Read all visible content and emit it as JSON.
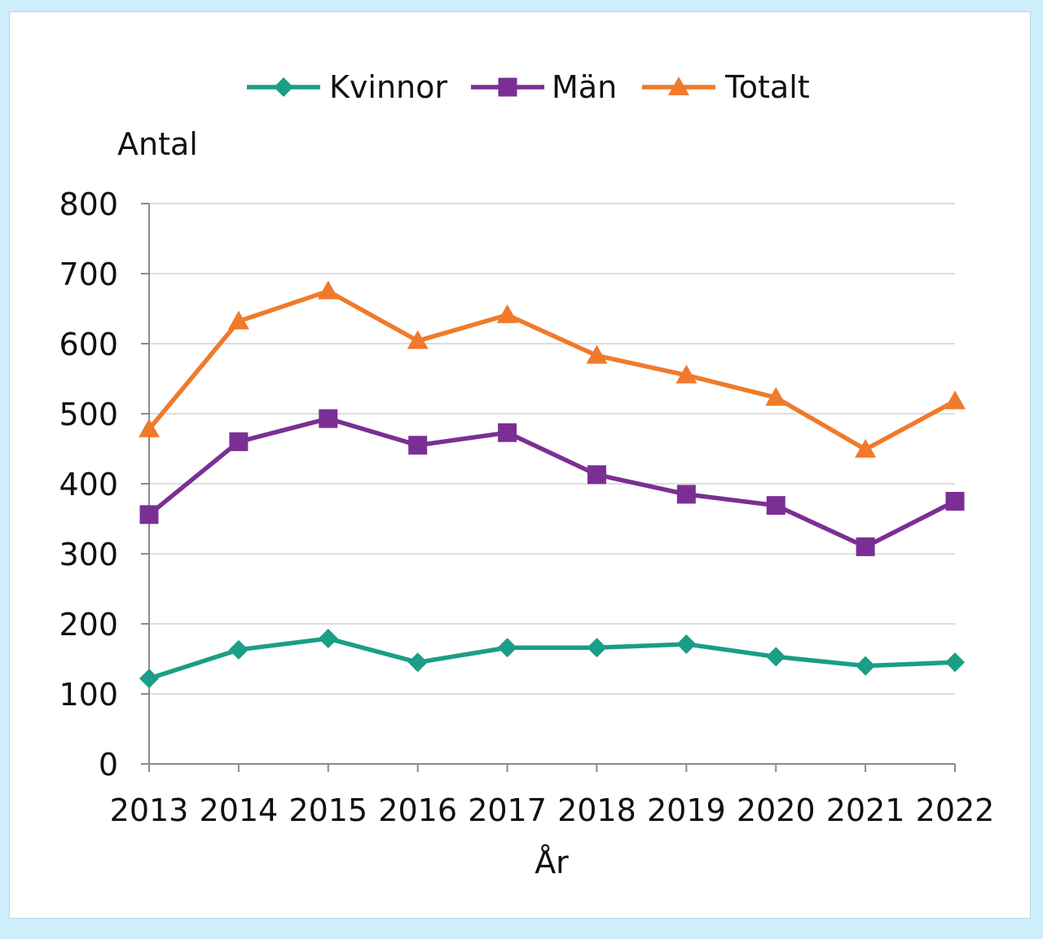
{
  "chart_data": {
    "type": "line",
    "title": "",
    "xlabel": "År",
    "ylabel": "Antal",
    "ylim": [
      0,
      800
    ],
    "yticks": [
      0,
      100,
      200,
      300,
      400,
      500,
      600,
      700,
      800
    ],
    "grid": "horizontal",
    "legend_position": "top-center",
    "categories": [
      "2013",
      "2014",
      "2015",
      "2016",
      "2017",
      "2018",
      "2019",
      "2020",
      "2021",
      "2022"
    ],
    "series": [
      {
        "name": "Kvinnor",
        "marker": "diamond",
        "color": "#1a9e85",
        "values": [
          122,
          163,
          179,
          145,
          166,
          166,
          171,
          153,
          140,
          145
        ]
      },
      {
        "name": "Män",
        "marker": "square",
        "color": "#7b2f94",
        "values": [
          356,
          460,
          493,
          455,
          473,
          413,
          385,
          369,
          310,
          375
        ]
      },
      {
        "name": "Totalt",
        "marker": "triangle",
        "color": "#f07a2c",
        "values": [
          478,
          632,
          675,
          604,
          641,
          583,
          555,
          523,
          449,
          518
        ]
      }
    ]
  }
}
